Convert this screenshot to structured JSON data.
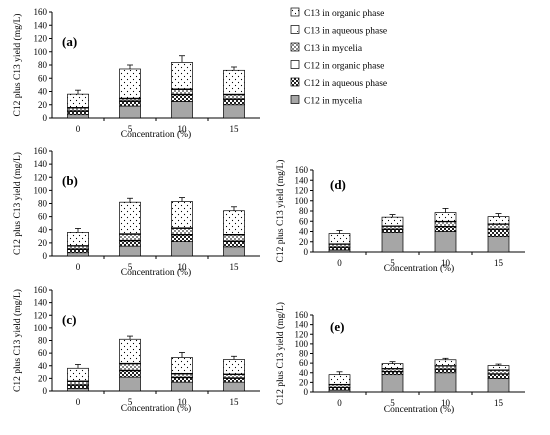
{
  "colors": {
    "mycelia_fill": "#a6a6a6",
    "open_fill": "#ffffff",
    "stroke": "#000000"
  },
  "legend": [
    {
      "label": "C13 in organic phase",
      "pattern": "dots"
    },
    {
      "label": "C13 in aqueous phase",
      "pattern": "sparse-dots"
    },
    {
      "label": "C13 in mycelia",
      "pattern": "light-check"
    },
    {
      "label": "C12 in organic phase",
      "pattern": "plain"
    },
    {
      "label": "C12 in aqueous phase",
      "pattern": "dark-check"
    },
    {
      "label": "C12 in mycelia",
      "pattern": "solid-gray"
    }
  ],
  "chart_data": [
    {
      "type": "bar",
      "stacked": true,
      "panel_label": "(a)",
      "categories": [
        "0",
        "5",
        "10",
        "15"
      ],
      "xlabel": "Concentration (%)",
      "ylabel": "C12 plus C13 yield (mg/L)",
      "ylim": [
        0,
        160
      ],
      "yticks": [
        0,
        20,
        40,
        60,
        80,
        100,
        120,
        140,
        160
      ],
      "series": [
        {
          "name": "C12 in mycelia",
          "values": [
            5,
            18,
            25,
            20
          ]
        },
        {
          "name": "C12 in aqueous phase",
          "values": [
            5,
            7,
            10,
            8
          ]
        },
        {
          "name": "C12 in organic phase",
          "values": [
            1,
            1,
            1,
            1
          ]
        },
        {
          "name": "C13 in mycelia",
          "values": [
            4,
            3,
            7,
            6
          ]
        },
        {
          "name": "C13 in aqueous phase",
          "values": [
            1,
            1,
            1,
            1
          ]
        },
        {
          "name": "C13 in organic phase",
          "values": [
            20,
            44,
            40,
            36
          ]
        }
      ],
      "totals": [
        36,
        74,
        84,
        72
      ],
      "total_error": [
        6,
        6,
        10,
        5
      ]
    },
    {
      "type": "bar",
      "stacked": true,
      "panel_label": "(b)",
      "categories": [
        "0",
        "5",
        "10",
        "15"
      ],
      "xlabel": "Concentration (%)",
      "ylabel": "C12 plus C13 yield (mg/L)",
      "ylim": [
        0,
        160
      ],
      "yticks": [
        0,
        20,
        40,
        60,
        80,
        100,
        120,
        140,
        160
      ],
      "series": [
        {
          "name": "C12 in mycelia",
          "values": [
            5,
            15,
            22,
            14
          ]
        },
        {
          "name": "C12 in aqueous phase",
          "values": [
            5,
            8,
            10,
            8
          ]
        },
        {
          "name": "C12 in organic phase",
          "values": [
            1,
            1,
            1,
            1
          ]
        },
        {
          "name": "C13 in mycelia",
          "values": [
            4,
            9,
            9,
            9
          ]
        },
        {
          "name": "C13 in aqueous phase",
          "values": [
            1,
            1,
            1,
            1
          ]
        },
        {
          "name": "C13 in organic phase",
          "values": [
            20,
            48,
            40,
            36
          ]
        }
      ],
      "totals": [
        36,
        82,
        83,
        69
      ],
      "total_error": [
        6,
        6,
        6,
        6
      ]
    },
    {
      "type": "bar",
      "stacked": true,
      "panel_label": "(c)",
      "categories": [
        "0",
        "5",
        "10",
        "15"
      ],
      "xlabel": "Concentration (%)",
      "ylabel": "C12 plus C13 yield (mg/L)",
      "ylim": [
        0,
        160
      ],
      "yticks": [
        0,
        20,
        40,
        60,
        80,
        100,
        120,
        140,
        160
      ],
      "series": [
        {
          "name": "C12 in mycelia",
          "values": [
            4,
            22,
            14,
            14
          ]
        },
        {
          "name": "C12 in aqueous phase",
          "values": [
            5,
            10,
            7,
            6
          ]
        },
        {
          "name": "C12 in organic phase",
          "values": [
            1,
            1,
            1,
            1
          ]
        },
        {
          "name": "C13 in mycelia",
          "values": [
            5,
            10,
            5,
            5
          ]
        },
        {
          "name": "C13 in aqueous phase",
          "values": [
            1,
            1,
            1,
            1
          ]
        },
        {
          "name": "C13 in organic phase",
          "values": [
            20,
            38,
            25,
            23
          ]
        }
      ],
      "totals": [
        36,
        82,
        53,
        50
      ],
      "total_error": [
        6,
        5,
        8,
        5
      ]
    },
    {
      "type": "bar",
      "stacked": true,
      "panel_label": "(d)",
      "categories": [
        "0",
        "5",
        "10",
        "15"
      ],
      "xlabel": "Concentration (%)",
      "ylabel": "C12 plus C13 yield (mg/L)",
      "ylim": [
        0,
        160
      ],
      "yticks": [
        0,
        20,
        40,
        60,
        80,
        100,
        120,
        140,
        160
      ],
      "series": [
        {
          "name": "C12 in mycelia",
          "values": [
            4,
            38,
            40,
            30
          ]
        },
        {
          "name": "C12 in aqueous phase",
          "values": [
            5,
            6,
            9,
            14
          ]
        },
        {
          "name": "C12 in organic phase",
          "values": [
            1,
            1,
            1,
            1
          ]
        },
        {
          "name": "C13 in mycelia",
          "values": [
            5,
            5,
            9,
            9
          ]
        },
        {
          "name": "C13 in aqueous phase",
          "values": [
            1,
            1,
            1,
            1
          ]
        },
        {
          "name": "C13 in organic phase",
          "values": [
            20,
            17,
            17,
            14
          ]
        }
      ],
      "totals": [
        36,
        68,
        77,
        69
      ],
      "total_error": [
        6,
        5,
        8,
        6
      ]
    },
    {
      "type": "bar",
      "stacked": true,
      "panel_label": "(e)",
      "categories": [
        "0",
        "5",
        "10",
        "15"
      ],
      "xlabel": "Concentration (%)",
      "ylabel": "C12 plus C13 yield (mg/L)",
      "ylim": [
        0,
        160
      ],
      "yticks": [
        0,
        20,
        40,
        60,
        80,
        100,
        120,
        140,
        160
      ],
      "series": [
        {
          "name": "C12 in mycelia",
          "values": [
            4,
            36,
            40,
            28
          ]
        },
        {
          "name": "C12 in aqueous phase",
          "values": [
            5,
            6,
            7,
            9
          ]
        },
        {
          "name": "C12 in organic phase",
          "values": [
            1,
            1,
            1,
            1
          ]
        },
        {
          "name": "C13 in mycelia",
          "values": [
            5,
            5,
            6,
            7
          ]
        },
        {
          "name": "C13 in aqueous phase",
          "values": [
            1,
            1,
            1,
            1
          ]
        },
        {
          "name": "C13 in organic phase",
          "values": [
            20,
            10,
            12,
            9
          ]
        }
      ],
      "totals": [
        36,
        59,
        66,
        55
      ],
      "total_error": [
        6,
        4,
        4,
        3
      ]
    }
  ]
}
